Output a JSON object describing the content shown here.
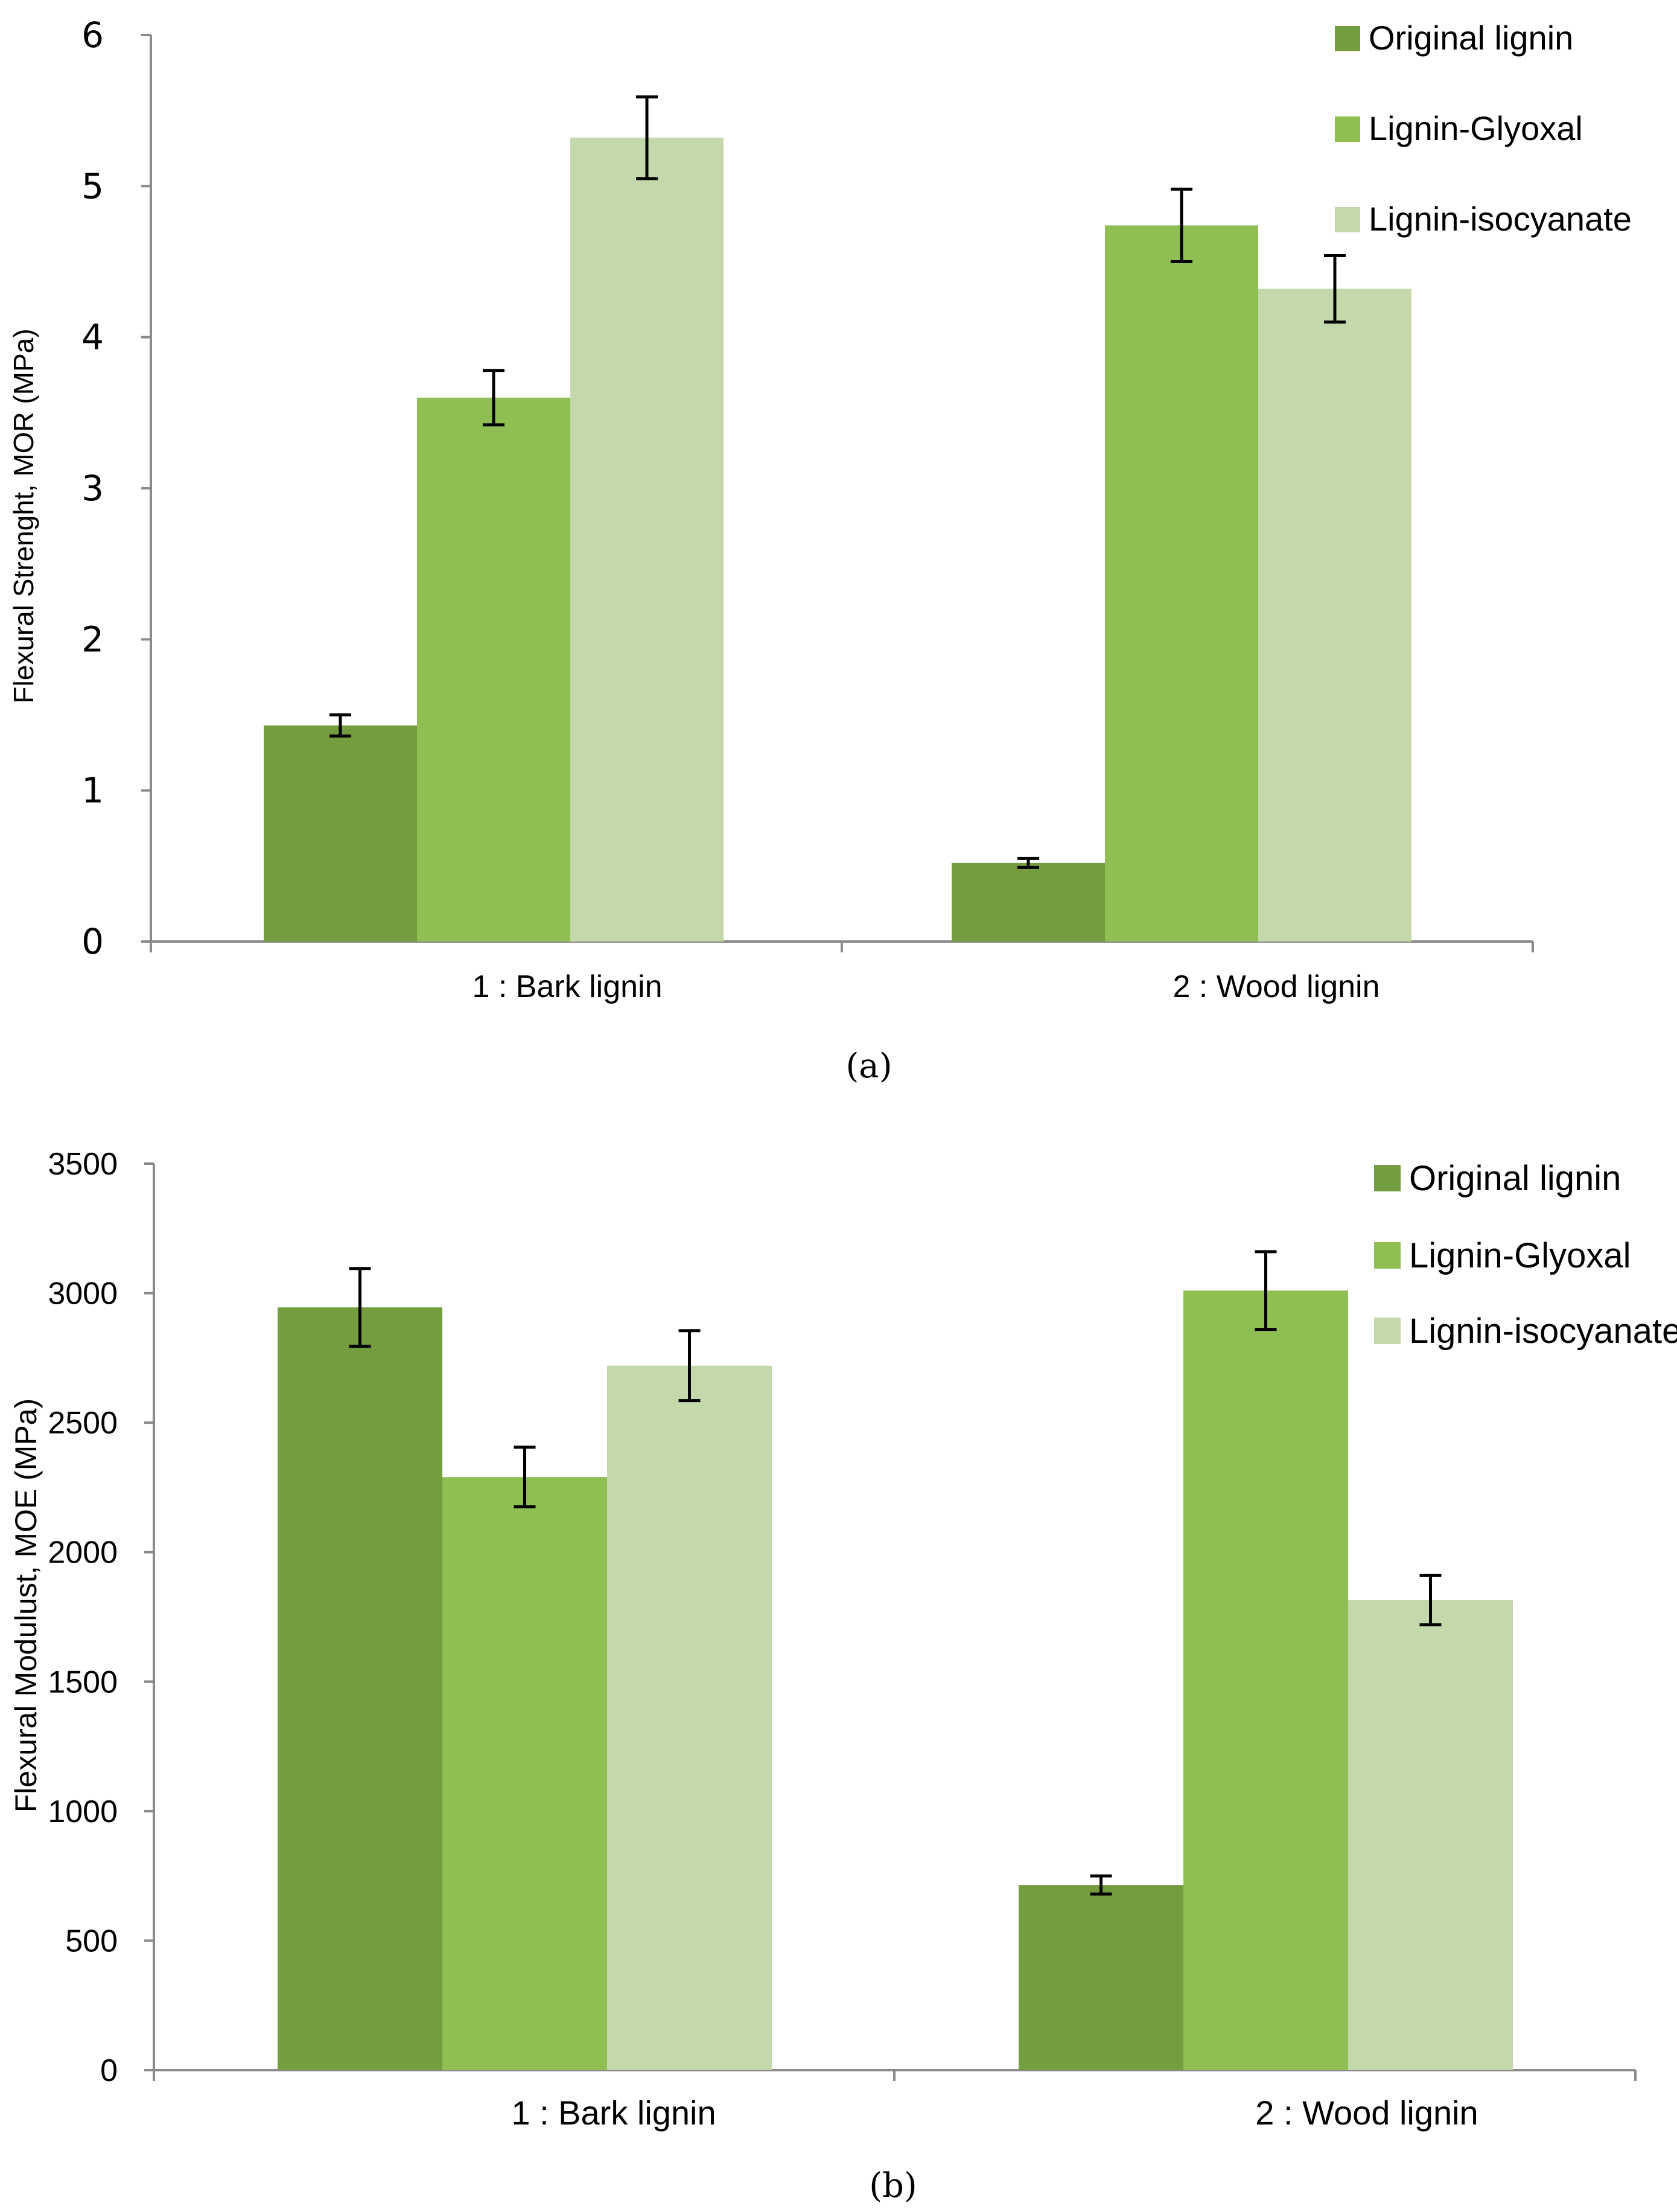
{
  "colors": {
    "original_lignin": "#739d3f",
    "lignin_glyoxal": "#8fbe53",
    "lignin_isocyanate": "#c3d8ab",
    "axis": "#8a8a8a",
    "error_bar": "#000000"
  },
  "chart_data": [
    {
      "type": "bar",
      "panel_label": "(a)",
      "ylabel": "Flexural Strenght, MOR (MPa)",
      "xlabel": "",
      "ylim": [
        0,
        6
      ],
      "yticks": [
        "0",
        "1",
        "2",
        "3",
        "4",
        "5",
        "6"
      ],
      "categories": [
        "1 : Bark lignin",
        "2 : Wood lignin"
      ],
      "legend_position": "top-right",
      "series": [
        {
          "name": "Original lignin",
          "values": [
            1.43,
            0.52
          ],
          "errors": [
            0.07,
            0.03
          ]
        },
        {
          "name": "Lignin-Glyoxal",
          "values": [
            3.6,
            4.74
          ],
          "errors": [
            0.18,
            0.24
          ]
        },
        {
          "name": "Lignin-isocyanate",
          "values": [
            5.32,
            4.32
          ],
          "errors": [
            0.27,
            0.22
          ]
        }
      ]
    },
    {
      "type": "bar",
      "panel_label": "(b)",
      "ylabel": "Flexural Modulust, MOE (MPa)",
      "xlabel": "",
      "ylim": [
        0,
        3500
      ],
      "yticks": [
        "0",
        "500",
        "1000",
        "1500",
        "2000",
        "2500",
        "3000",
        "3500"
      ],
      "categories": [
        "1 : Bark lignin",
        "2 : Wood lignin"
      ],
      "legend_position": "top-right",
      "series": [
        {
          "name": "Original lignin",
          "values": [
            2945,
            715
          ],
          "errors": [
            150,
            35
          ]
        },
        {
          "name": "Lignin-Glyoxal",
          "values": [
            2290,
            3010
          ],
          "errors": [
            115,
            150
          ]
        },
        {
          "name": "Lignin-isocyanate",
          "values": [
            2720,
            1815
          ],
          "errors": [
            135,
            95
          ]
        }
      ]
    }
  ]
}
